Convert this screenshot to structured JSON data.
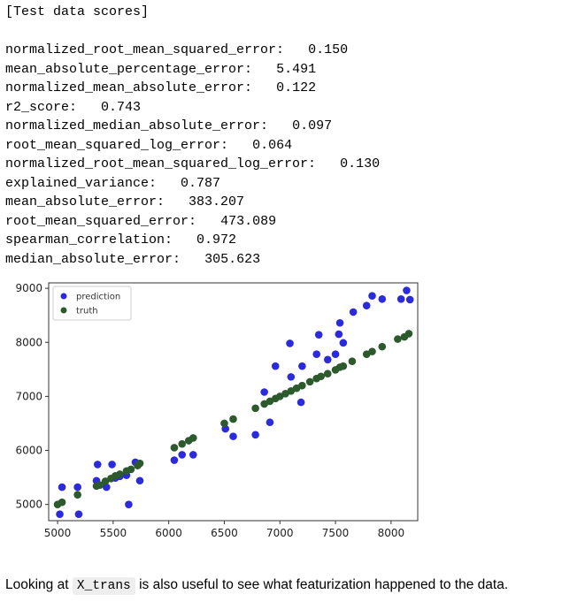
{
  "output": {
    "header": "[Test data scores]",
    "metrics": [
      {
        "name": "normalized_root_mean_squared_error:",
        "value": "0.150"
      },
      {
        "name": "mean_absolute_percentage_error:",
        "value": "5.491"
      },
      {
        "name": "normalized_mean_absolute_error:",
        "value": "0.122"
      },
      {
        "name": "r2_score:",
        "value": "0.743"
      },
      {
        "name": "normalized_median_absolute_error:",
        "value": "0.097"
      },
      {
        "name": "root_mean_squared_log_error:",
        "value": "0.064"
      },
      {
        "name": "normalized_root_mean_squared_log_error:",
        "value": "0.130"
      },
      {
        "name": "explained_variance:",
        "value": "0.787"
      },
      {
        "name": "mean_absolute_error:",
        "value": "383.207"
      },
      {
        "name": "root_mean_squared_error:",
        "value": "473.089"
      },
      {
        "name": "spearman_correlation:",
        "value": "0.972"
      },
      {
        "name": "median_absolute_error:",
        "value": "305.623"
      }
    ]
  },
  "chart_data": {
    "type": "scatter",
    "x_ticks": [
      "5000",
      "5500",
      "6000",
      "6500",
      "7000",
      "7500",
      "8000"
    ],
    "y_ticks": [
      "5000",
      "6000",
      "7000",
      "8000",
      "9000"
    ],
    "xlim": [
      4920,
      8240
    ],
    "ylim": [
      4700,
      9100
    ],
    "legend_position": "upper-left",
    "grid": false,
    "series": [
      {
        "name": "prediction",
        "color": "#2b2bdd",
        "points": [
          [
            5020,
            4820
          ],
          [
            5040,
            5320
          ],
          [
            5180,
            5320
          ],
          [
            5190,
            4820
          ],
          [
            5350,
            5440
          ],
          [
            5360,
            5740
          ],
          [
            5440,
            5320
          ],
          [
            5490,
            5740
          ],
          [
            5520,
            5490
          ],
          [
            5560,
            5520
          ],
          [
            5620,
            5540
          ],
          [
            5640,
            5000
          ],
          [
            5700,
            5780
          ],
          [
            5740,
            5440
          ],
          [
            6050,
            5820
          ],
          [
            6120,
            5920
          ],
          [
            6220,
            5920
          ],
          [
            6510,
            6400
          ],
          [
            6580,
            6260
          ],
          [
            6780,
            6290
          ],
          [
            6860,
            7080
          ],
          [
            6910,
            6520
          ],
          [
            6960,
            7560
          ],
          [
            7090,
            7980
          ],
          [
            7100,
            7360
          ],
          [
            7190,
            6890
          ],
          [
            7200,
            7560
          ],
          [
            7330,
            7780
          ],
          [
            7350,
            8140
          ],
          [
            7430,
            7680
          ],
          [
            7500,
            7780
          ],
          [
            7530,
            8150
          ],
          [
            7540,
            8360
          ],
          [
            7570,
            7990
          ],
          [
            7660,
            8560
          ],
          [
            7780,
            8680
          ],
          [
            7830,
            8860
          ],
          [
            7920,
            8800
          ],
          [
            8090,
            8800
          ],
          [
            8140,
            8960
          ],
          [
            8170,
            8790
          ]
        ]
      },
      {
        "name": "truth",
        "color": "#2d5a2d",
        "points": [
          [
            5000,
            5000
          ],
          [
            5040,
            5040
          ],
          [
            5180,
            5180
          ],
          [
            5350,
            5340
          ],
          [
            5380,
            5360
          ],
          [
            5430,
            5430
          ],
          [
            5480,
            5480
          ],
          [
            5520,
            5530
          ],
          [
            5560,
            5560
          ],
          [
            5620,
            5620
          ],
          [
            5660,
            5650
          ],
          [
            5720,
            5720
          ],
          [
            5740,
            5760
          ],
          [
            6050,
            6050
          ],
          [
            6120,
            6120
          ],
          [
            6180,
            6180
          ],
          [
            6220,
            6230
          ],
          [
            6500,
            6500
          ],
          [
            6580,
            6580
          ],
          [
            6780,
            6780
          ],
          [
            6860,
            6860
          ],
          [
            6910,
            6910
          ],
          [
            6960,
            6960
          ],
          [
            7000,
            7000
          ],
          [
            7050,
            7050
          ],
          [
            7100,
            7100
          ],
          [
            7150,
            7150
          ],
          [
            7200,
            7200
          ],
          [
            7270,
            7270
          ],
          [
            7330,
            7330
          ],
          [
            7370,
            7370
          ],
          [
            7430,
            7420
          ],
          [
            7500,
            7490
          ],
          [
            7540,
            7540
          ],
          [
            7570,
            7560
          ],
          [
            7650,
            7650
          ],
          [
            7780,
            7780
          ],
          [
            7830,
            7830
          ],
          [
            7920,
            7920
          ],
          [
            8060,
            8060
          ],
          [
            8120,
            8100
          ],
          [
            8160,
            8160
          ]
        ]
      }
    ]
  },
  "prose": {
    "before": "Looking at ",
    "code": "X_trans",
    "after": " is also useful to see what featurization happened to the data."
  }
}
